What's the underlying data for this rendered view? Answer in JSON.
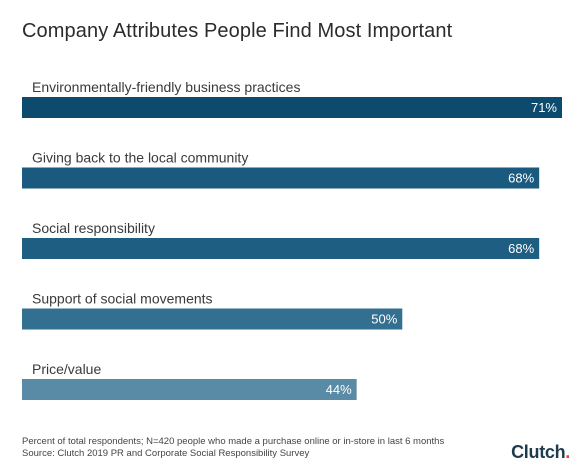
{
  "title": "Company Attributes People Find Most Important",
  "footer": {
    "note": "Percent of total respondents; N=420 people who made a purchase online or in-store in last 6 months",
    "source": "Source: Clutch 2019 PR and Corporate Social Responsibility Survey"
  },
  "logo": {
    "text": "Clutch",
    "dot": "."
  },
  "chart_data": {
    "type": "bar",
    "orientation": "horizontal",
    "categories": [
      "Environmentally-friendly business practices",
      "Giving back to the local community",
      "Social responsibility",
      "Support of social movements",
      "Price/value"
    ],
    "values": [
      71,
      68,
      68,
      50,
      44
    ],
    "value_labels": [
      "71%",
      "68%",
      "68%",
      "50%",
      "44%"
    ],
    "colors": [
      "#0c4a6e",
      "#1a5a7e",
      "#1d5e82",
      "#336f90",
      "#5a8ba6"
    ],
    "xlim": [
      0,
      71
    ],
    "grid": false,
    "legend": "none"
  }
}
